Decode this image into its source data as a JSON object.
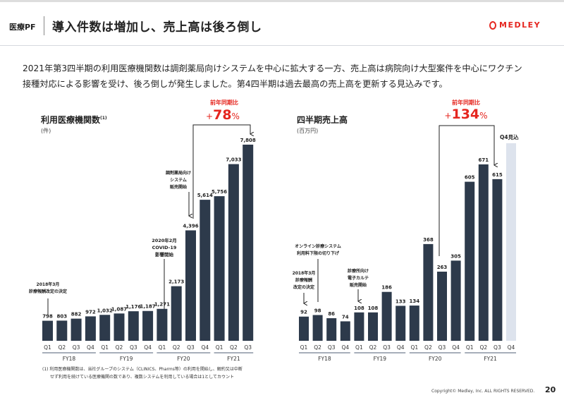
{
  "header": {
    "section": "医療PF",
    "title": "導入件数は増加し、売上高は後ろ倒し",
    "logo": "MEDLEY"
  },
  "lead": {
    "line1": "2021年第3四半期の利用医療機関数は調剤薬局向けシステムを中心に拡大する一方、売上高は病院向け大型案件を中心にワクチン",
    "line2": "接種対応による影響を受け、後ろ倒しが発生しました。第4四半期は過去最高の売上高を更新する見込みです。"
  },
  "colors": {
    "bar": "#2d3a4b",
    "forecast": "#dde3ed",
    "accent": "#e5261f"
  },
  "chart_data": [
    {
      "type": "bar",
      "title": "利用医療機関数",
      "title_note": "(1)",
      "unit": "(件)",
      "categories": [
        "Q1",
        "Q2",
        "Q3",
        "Q4",
        "Q1",
        "Q2",
        "Q3",
        "Q4",
        "Q1",
        "Q2",
        "Q3",
        "Q4",
        "Q1",
        "Q2",
        "Q3"
      ],
      "groups": [
        {
          "label": "FY18",
          "count": 4
        },
        {
          "label": "FY19",
          "count": 4
        },
        {
          "label": "FY20",
          "count": 4
        },
        {
          "label": "FY21",
          "count": 3
        }
      ],
      "values": [
        798,
        803,
        882,
        972,
        1032,
        1087,
        1176,
        1187,
        1271,
        2173,
        4396,
        5614,
        5756,
        7033,
        7808
      ],
      "value_labels": [
        "798",
        "803",
        "882",
        "972",
        "1,032",
        "1,087",
        "1,176",
        "1,187",
        "1,271",
        "2,173",
        "4,396",
        "5,614",
        "5,756",
        "7,033",
        "7,808"
      ],
      "yoy": {
        "label": "前年同期比",
        "prefix": "+",
        "value": "78",
        "suffix": "%"
      },
      "annotations": [
        {
          "lines": [
            "2018年3月",
            "診療報酬改定の決定"
          ]
        },
        {
          "lines": [
            "2020年2月",
            "COVID-19",
            "影響開始"
          ]
        },
        {
          "lines": [
            "調剤薬局向け",
            "システム",
            "販売開始"
          ]
        }
      ]
    },
    {
      "type": "bar",
      "title": "四半期売上高",
      "unit": "(百万円)",
      "categories": [
        "Q1",
        "Q2",
        "Q3",
        "Q4",
        "Q1",
        "Q2",
        "Q3",
        "Q4",
        "Q1",
        "Q2",
        "Q3",
        "Q4",
        "Q1",
        "Q2",
        "Q3",
        "Q4"
      ],
      "groups": [
        {
          "label": "FY18",
          "count": 4
        },
        {
          "label": "FY19",
          "count": 4
        },
        {
          "label": "FY20",
          "count": 4
        },
        {
          "label": "FY21",
          "count": 4
        }
      ],
      "values": [
        92,
        98,
        86,
        74,
        108,
        108,
        186,
        133,
        134,
        368,
        263,
        305,
        605,
        671,
        615,
        null
      ],
      "value_labels": [
        "92",
        "98",
        "86",
        "74",
        "108",
        "108",
        "186",
        "133",
        "134",
        "368",
        "263",
        "305",
        "605",
        "671",
        "615",
        ""
      ],
      "forecast_label": "Q4見込",
      "yoy": {
        "label": "前年同期比",
        "prefix": "+",
        "value": "134",
        "suffix": "%"
      },
      "annotations": [
        {
          "lines": [
            "オンライン診療システム",
            "利用料下限の切り下げ"
          ]
        },
        {
          "lines": [
            "2018年3月",
            "診療報酬",
            "改定の決定"
          ]
        },
        {
          "lines": [
            "診療所向け",
            "電子カルテ",
            "販売開始"
          ]
        }
      ]
    }
  ],
  "footnote": {
    "line1": "(1) 利用医療機関数は、当社グループのシステム（CLINICS、Pharms等）の利用を開始し、解約又は中断",
    "line2": "せず利用を続けている医療機関の数であり、複数システムを利用している場合は1としてカウント"
  },
  "footer": {
    "copyright": "Copyright© Medley, Inc. ALL RIGHTS RESERVED.",
    "page": "20"
  }
}
